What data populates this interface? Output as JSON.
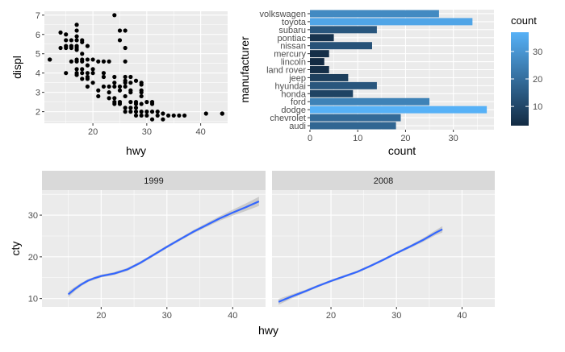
{
  "colors": {
    "panel_bg": "#ebebeb",
    "grid_major": "#ffffff",
    "strip_bg": "#d9d9d9",
    "point": "#000000",
    "smooth_line": "#3366ff",
    "ribbon": "#999999",
    "gradient_low": "#132b43",
    "gradient_high": "#56b1f7"
  },
  "chart_data": [
    {
      "type": "scatter",
      "xlabel": "hwy",
      "ylabel": "displ",
      "xlim": [
        11,
        45
      ],
      "ylim": [
        1.4,
        7.2
      ],
      "xticks": [
        20,
        30,
        40
      ],
      "yticks": [
        2,
        3,
        4,
        5,
        6,
        7
      ],
      "grid": true,
      "points": [
        [
          12,
          4.7
        ],
        [
          12,
          4.7
        ],
        [
          14,
          6.1
        ],
        [
          14,
          5.3
        ],
        [
          15,
          5.7
        ],
        [
          15,
          5.4
        ],
        [
          15,
          5.3
        ],
        [
          15,
          6.0
        ],
        [
          15,
          4.0
        ],
        [
          16,
          5.7
        ],
        [
          16,
          4.6
        ],
        [
          16,
          5.3
        ],
        [
          16,
          5.4
        ],
        [
          17,
          4.7
        ],
        [
          17,
          5.2
        ],
        [
          17,
          5.7
        ],
        [
          17,
          6.5
        ],
        [
          17,
          4.6
        ],
        [
          17,
          5.3
        ],
        [
          17,
          5.9
        ],
        [
          17,
          4.0
        ],
        [
          17,
          3.9
        ],
        [
          17,
          4.2
        ],
        [
          17,
          5.4
        ],
        [
          17,
          6.2
        ],
        [
          18,
          4.7
        ],
        [
          18,
          5.7
        ],
        [
          18,
          4.6
        ],
        [
          18,
          4.0
        ],
        [
          18,
          3.7
        ],
        [
          18,
          4.2
        ],
        [
          18,
          5.0
        ],
        [
          18,
          5.6
        ],
        [
          19,
          3.8
        ],
        [
          19,
          4.0
        ],
        [
          19,
          4.4
        ],
        [
          19,
          3.7
        ],
        [
          19,
          3.3
        ],
        [
          19,
          4.7
        ],
        [
          19,
          5.4
        ],
        [
          20,
          4.7
        ],
        [
          20,
          4.0
        ],
        [
          20,
          3.5
        ],
        [
          20,
          4.2
        ],
        [
          21,
          2.8
        ],
        [
          21,
          3.1
        ],
        [
          21,
          4.6
        ],
        [
          22,
          3.3
        ],
        [
          22,
          4.6
        ],
        [
          22,
          4.0
        ],
        [
          22,
          3.8
        ],
        [
          23,
          4.6
        ],
        [
          23,
          3.3
        ],
        [
          23,
          2.7
        ],
        [
          23,
          3.0
        ],
        [
          24,
          7.0
        ],
        [
          24,
          3.8
        ],
        [
          24,
          3.5
        ],
        [
          24,
          2.4
        ],
        [
          24,
          3.3
        ],
        [
          24,
          2.5
        ],
        [
          24,
          2.7
        ],
        [
          25,
          3.3
        ],
        [
          25,
          2.5
        ],
        [
          25,
          3.1
        ],
        [
          25,
          5.7
        ],
        [
          25,
          6.2
        ],
        [
          25,
          2.4
        ],
        [
          26,
          3.5
        ],
        [
          26,
          3.6
        ],
        [
          26,
          3.8
        ],
        [
          26,
          2.8
        ],
        [
          26,
          2.2
        ],
        [
          26,
          2.0
        ],
        [
          26,
          6.2
        ],
        [
          26,
          5.3
        ],
        [
          26,
          4.6
        ],
        [
          26,
          3.3
        ],
        [
          27,
          3.8
        ],
        [
          27,
          3.5
        ],
        [
          27,
          3.1
        ],
        [
          27,
          2.5
        ],
        [
          27,
          2.0
        ],
        [
          27,
          2.2
        ],
        [
          27,
          3.0
        ],
        [
          28,
          3.6
        ],
        [
          28,
          2.0
        ],
        [
          28,
          2.4
        ],
        [
          28,
          1.8
        ],
        [
          28,
          2.2
        ],
        [
          28,
          2.5
        ],
        [
          29,
          1.8
        ],
        [
          29,
          2.4
        ],
        [
          29,
          2.0
        ],
        [
          29,
          3.0
        ],
        [
          29,
          3.1
        ],
        [
          29,
          3.4
        ],
        [
          29,
          2.8
        ],
        [
          29,
          3.5
        ],
        [
          30,
          2.0
        ],
        [
          30,
          2.5
        ],
        [
          30,
          1.8
        ],
        [
          31,
          2.4
        ],
        [
          31,
          2.0
        ],
        [
          31,
          2.5
        ],
        [
          31,
          1.6
        ],
        [
          32,
          2.0
        ],
        [
          32,
          1.8
        ],
        [
          33,
          1.6
        ],
        [
          33,
          1.9
        ],
        [
          34,
          1.8
        ],
        [
          35,
          1.8
        ],
        [
          36,
          1.8
        ],
        [
          37,
          1.8
        ],
        [
          41,
          1.9
        ],
        [
          44,
          1.9
        ],
        [
          44,
          1.9
        ]
      ]
    },
    {
      "type": "bar",
      "orientation": "horizontal",
      "xlabel": "count",
      "ylabel": "manufacturer",
      "xlim": [
        0,
        38.5
      ],
      "xticks": [
        0,
        10,
        20,
        30
      ],
      "grid": true,
      "categories": [
        "volkswagen",
        "toyota",
        "subaru",
        "pontiac",
        "nissan",
        "mercury",
        "lincoln",
        "land rover",
        "jeep",
        "hyundai",
        "honda",
        "ford",
        "dodge",
        "chevrolet",
        "audi"
      ],
      "values": [
        27,
        34,
        14,
        5,
        13,
        4,
        3,
        4,
        8,
        14,
        9,
        25,
        37,
        19,
        18
      ],
      "legend": {
        "title": "count",
        "ticks": [
          10,
          20,
          30
        ],
        "range": [
          3,
          37
        ],
        "placement": "right"
      }
    },
    {
      "type": "line",
      "xlabel": "hwy",
      "ylabel": "cty",
      "xlim": [
        11,
        45
      ],
      "ylim": [
        8,
        36
      ],
      "xticks": [
        20,
        30,
        40
      ],
      "yticks": [
        10,
        20,
        30
      ],
      "grid": true,
      "facets": [
        {
          "label": "1999",
          "x": [
            15,
            16,
            17,
            18,
            19,
            20,
            22,
            24,
            26,
            28,
            30,
            32,
            34,
            36,
            38,
            40,
            42,
            44
          ],
          "y": [
            11.0,
            12.3,
            13.4,
            14.3,
            14.9,
            15.4,
            16.0,
            17.0,
            18.6,
            20.5,
            22.4,
            24.2,
            26.0,
            27.6,
            29.2,
            30.6,
            31.9,
            33.3
          ],
          "band": [
            0.7,
            0.5,
            0.4,
            0.35,
            0.35,
            0.35,
            0.35,
            0.35,
            0.35,
            0.35,
            0.35,
            0.35,
            0.4,
            0.45,
            0.55,
            0.7,
            0.9,
            1.1
          ]
        },
        {
          "label": "2008",
          "x": [
            12,
            14,
            16,
            18,
            20,
            22,
            24,
            26,
            28,
            30,
            32,
            34,
            36,
            37
          ],
          "y": [
            9.2,
            10.5,
            11.7,
            13.0,
            14.2,
            15.3,
            16.4,
            17.8,
            19.3,
            20.9,
            22.4,
            24.0,
            25.8,
            26.6
          ],
          "band": [
            0.7,
            0.5,
            0.35,
            0.3,
            0.3,
            0.3,
            0.3,
            0.3,
            0.3,
            0.3,
            0.35,
            0.45,
            0.6,
            0.75
          ]
        }
      ]
    }
  ]
}
